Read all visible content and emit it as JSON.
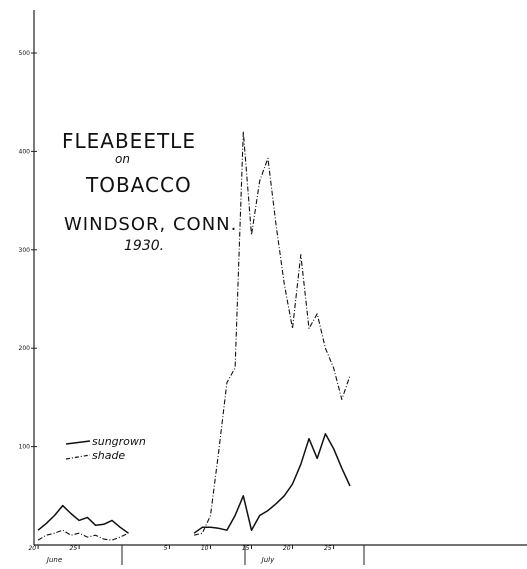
{
  "chart_data": {
    "type": "line",
    "title_lines": [
      "FLEABEETLE",
      "on",
      "TOBACCO",
      "WINDSOR, CONN.",
      "1930."
    ],
    "xlabel": "",
    "ylabel": "",
    "ylim": [
      0,
      500
    ],
    "yticks": [
      {
        "value": 100,
        "label": "100"
      },
      {
        "value": 200,
        "label": "200"
      },
      {
        "value": 300,
        "label": "300"
      },
      {
        "value": 400,
        "label": "400"
      },
      {
        "value": 500,
        "label": "500"
      }
    ],
    "xlim": [
      19.5,
      58
    ],
    "xticks": [
      {
        "value": 20,
        "label": "20"
      },
      {
        "value": 25,
        "label": "25"
      },
      {
        "value": 36,
        "label": "5"
      },
      {
        "value": 41,
        "label": "10"
      },
      {
        "value": 46,
        "label": "15"
      },
      {
        "value": 51,
        "label": "20"
      },
      {
        "value": 56,
        "label": "25"
      }
    ],
    "month_labels": [
      {
        "x": 22,
        "label": "June"
      },
      {
        "x": 48,
        "label": "July"
      }
    ],
    "grid": false,
    "legend": {
      "placement": "left-middle"
    },
    "series": [
      {
        "name": "sungrown",
        "style": "solid",
        "points": [
          [
            20,
            15
          ],
          [
            21,
            22
          ],
          [
            22,
            30
          ],
          [
            23,
            40
          ],
          [
            24,
            32
          ],
          [
            25,
            25
          ],
          [
            26,
            28
          ],
          [
            27,
            20
          ],
          [
            28,
            21
          ],
          [
            29,
            25
          ],
          [
            30,
            18
          ],
          [
            31,
            12
          ],
          [
            39,
            12
          ],
          [
            40,
            18
          ],
          [
            41,
            18
          ],
          [
            42,
            17
          ],
          [
            43,
            15
          ],
          [
            44,
            30
          ],
          [
            45,
            50
          ],
          [
            46,
            15
          ],
          [
            47,
            30
          ],
          [
            48,
            35
          ],
          [
            49,
            42
          ],
          [
            50,
            50
          ],
          [
            51,
            62
          ],
          [
            52,
            82
          ],
          [
            53,
            108
          ],
          [
            54,
            88
          ],
          [
            55,
            113
          ],
          [
            56,
            98
          ],
          [
            57,
            78
          ],
          [
            58,
            60
          ]
        ]
      },
      {
        "name": "shade",
        "style": "dashed",
        "points": [
          [
            20,
            5
          ],
          [
            21,
            10
          ],
          [
            22,
            12
          ],
          [
            23,
            15
          ],
          [
            24,
            10
          ],
          [
            25,
            12
          ],
          [
            26,
            8
          ],
          [
            27,
            10
          ],
          [
            28,
            6
          ],
          [
            29,
            5
          ],
          [
            30,
            8
          ],
          [
            31,
            12
          ],
          [
            39,
            10
          ],
          [
            40,
            12
          ],
          [
            41,
            30
          ],
          [
            42,
            95
          ],
          [
            43,
            165
          ],
          [
            44,
            180
          ],
          [
            45,
            420
          ],
          [
            46,
            315
          ],
          [
            47,
            370
          ],
          [
            48,
            393
          ],
          [
            49,
            325
          ],
          [
            50,
            265
          ],
          [
            51,
            220
          ],
          [
            52,
            295
          ],
          [
            53,
            220
          ],
          [
            54,
            235
          ],
          [
            55,
            200
          ],
          [
            56,
            180
          ],
          [
            57,
            148
          ],
          [
            58,
            172
          ]
        ]
      }
    ]
  }
}
